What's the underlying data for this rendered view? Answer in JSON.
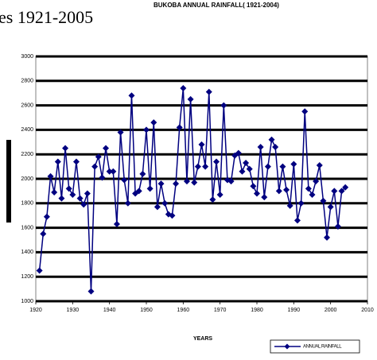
{
  "chart_data": {
    "type": "line",
    "subtitle": "es 1921-2005",
    "title": "BUKOBA ANNUAL RAINFALL( 1921-2004)",
    "x_label": "YEARS",
    "x": [
      1921,
      1922,
      1923,
      1924,
      1925,
      1926,
      1927,
      1928,
      1929,
      1930,
      1931,
      1932,
      1933,
      1934,
      1935,
      1936,
      1937,
      1938,
      1939,
      1940,
      1941,
      1942,
      1943,
      1944,
      1945,
      1946,
      1947,
      1948,
      1949,
      1950,
      1951,
      1952,
      1953,
      1954,
      1955,
      1956,
      1957,
      1958,
      1959,
      1960,
      1961,
      1962,
      1963,
      1964,
      1965,
      1966,
      1967,
      1968,
      1969,
      1970,
      1971,
      1972,
      1973,
      1974,
      1975,
      1976,
      1977,
      1978,
      1979,
      1980,
      1981,
      1982,
      1983,
      1984,
      1985,
      1986,
      1987,
      1988,
      1989,
      1990,
      1991,
      1992,
      1993,
      1994,
      1995,
      1996,
      1997,
      1998,
      1999,
      2000,
      2001,
      2002,
      2003,
      2004
    ],
    "series": [
      {
        "name": "ANNUAL RAINFALL",
        "color": "#000080",
        "values": [
          1250,
          1550,
          1690,
          2020,
          1890,
          2140,
          1840,
          2250,
          1920,
          1870,
          2140,
          1840,
          1790,
          1880,
          1080,
          2100,
          2180,
          2010,
          2250,
          2060,
          2060,
          1630,
          2380,
          1990,
          1800,
          2680,
          1880,
          1900,
          2040,
          2400,
          1920,
          2460,
          1770,
          1960,
          1800,
          1710,
          1700,
          1960,
          2420,
          2740,
          1980,
          2650,
          1970,
          2100,
          2280,
          2100,
          2710,
          1830,
          2140,
          1870,
          2600,
          1990,
          1980,
          2190,
          2210,
          2060,
          2130,
          2080,
          1940,
          1880,
          2260,
          1850,
          2100,
          2320,
          2260,
          1900,
          2100,
          1910,
          1780,
          2120,
          1660,
          1800,
          2550,
          1920,
          1870,
          1980,
          2110,
          1820,
          1520,
          1770,
          1900,
          1610,
          1900,
          1930
        ]
      }
    ],
    "xlim": [
      1920,
      2010
    ],
    "ylim": [
      1000,
      3000
    ],
    "xticks": [
      1920,
      1930,
      1940,
      1950,
      1960,
      1970,
      1980,
      1990,
      2000,
      2010
    ],
    "yticks": [
      1000,
      1200,
      1400,
      1600,
      1800,
      2000,
      2200,
      2400,
      2600,
      2800,
      3000
    ],
    "grid": true,
    "legend": "bottom-right"
  }
}
